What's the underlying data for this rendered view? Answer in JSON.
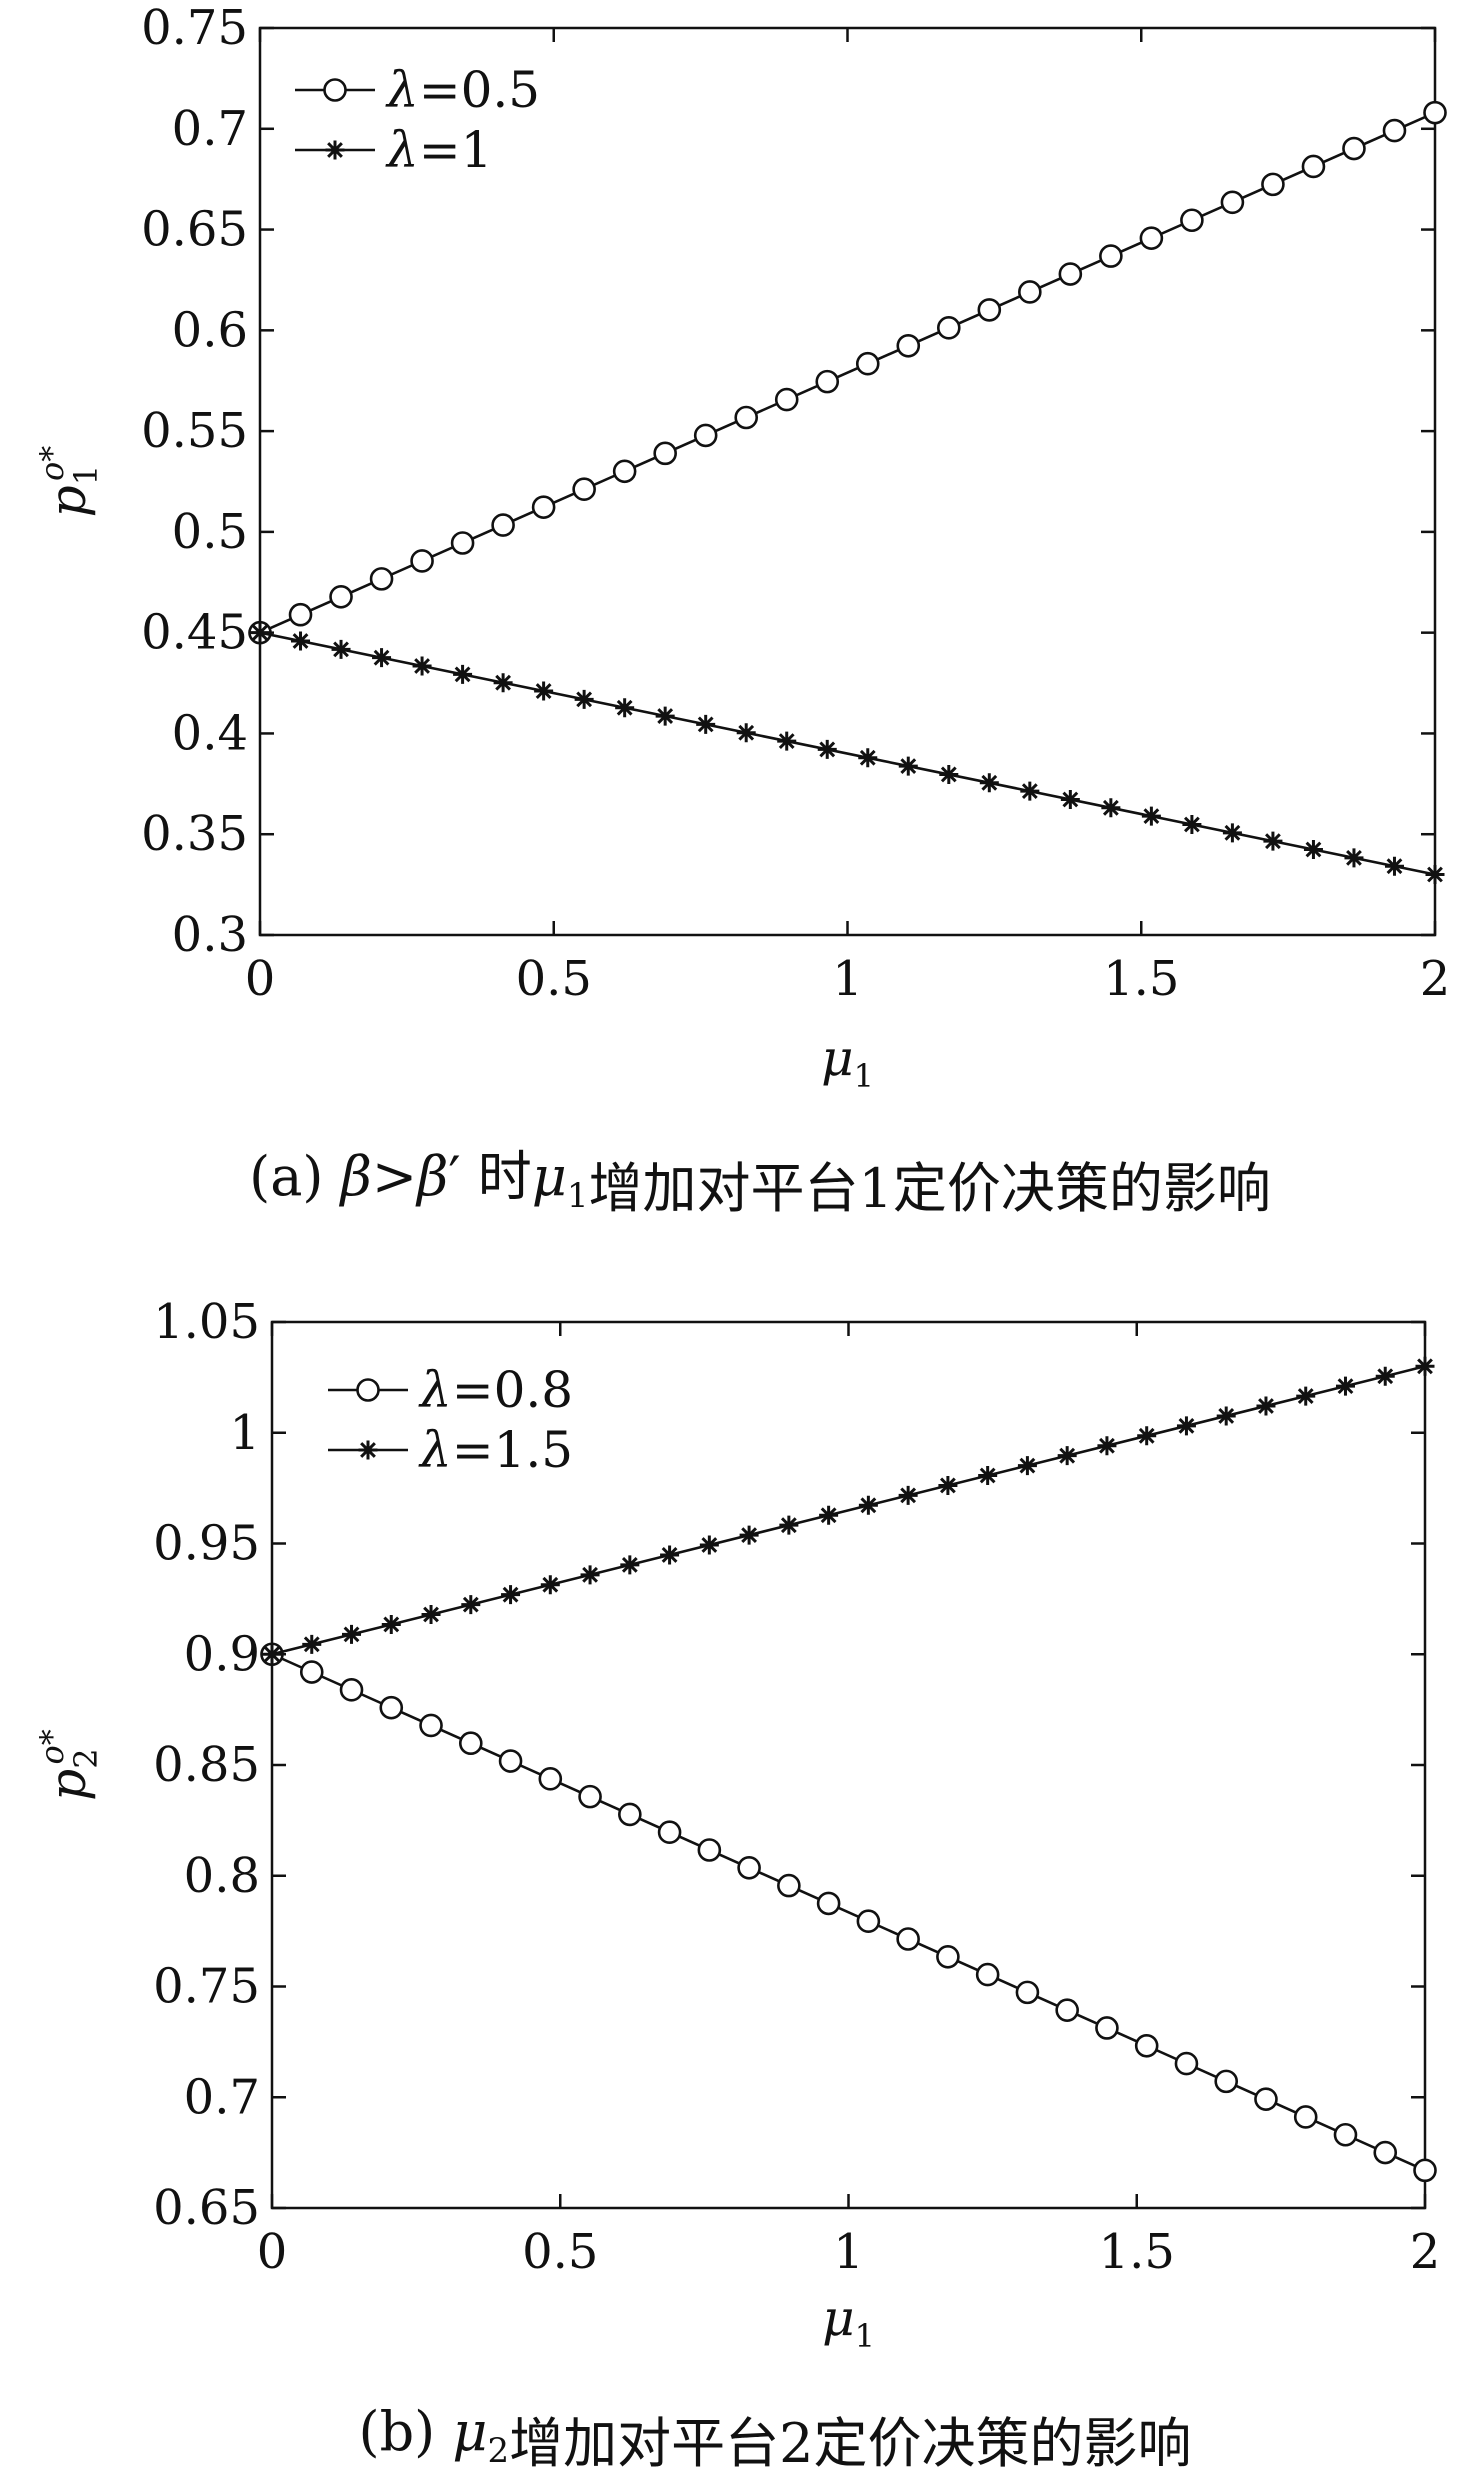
{
  "colors": {
    "ink": "#111111",
    "background": "#ffffff"
  },
  "chart_data": [
    {
      "type": "line",
      "panel": "a",
      "caption": "(a) β>β′  时μ1增加对平台1定价决策的影响",
      "xlabel": "μ1",
      "ylabel": "p1o*",
      "xlim": [
        0,
        2
      ],
      "ylim": [
        0.3,
        0.75
      ],
      "x_ticks": [
        0,
        0.5,
        1,
        1.5,
        2
      ],
      "x_tick_labels": [
        "0",
        "0.5",
        "1",
        "1.5",
        "2"
      ],
      "y_ticks": [
        0.3,
        0.35,
        0.4,
        0.45,
        0.5,
        0.55,
        0.6,
        0.65,
        0.7,
        0.75
      ],
      "y_tick_labels": [
        "0.3",
        "0.35",
        "0.4",
        "0.45",
        "0.5",
        "0.55",
        "0.6",
        "0.65",
        "0.7",
        "0.75"
      ],
      "grid": false,
      "legend_position": "top-left",
      "marker_count": 30,
      "series": [
        {
          "name": "λ=0.5",
          "marker": "circle",
          "x": [
            0,
            2
          ],
          "y": [
            0.45,
            0.708
          ]
        },
        {
          "name": "λ=1",
          "marker": "asterisk",
          "x": [
            0,
            2
          ],
          "y": [
            0.45,
            0.33
          ]
        }
      ]
    },
    {
      "type": "line",
      "panel": "b",
      "caption": "(b) μ2增加对平台2定价决策的影响",
      "xlabel": "μ1",
      "ylabel": "p2o*",
      "xlim": [
        0,
        2
      ],
      "ylim": [
        0.65,
        1.05
      ],
      "x_ticks": [
        0,
        0.5,
        1,
        1.5,
        2
      ],
      "x_tick_labels": [
        "0",
        "0.5",
        "1",
        "1.5",
        "2"
      ],
      "y_ticks": [
        0.65,
        0.7,
        0.75,
        0.8,
        0.85,
        0.9,
        0.95,
        1,
        1.05
      ],
      "y_tick_labels": [
        "0.65",
        "0.7",
        "0.75",
        "0.8",
        "0.85",
        "0.9",
        "0.95",
        "1",
        "1.05"
      ],
      "grid": false,
      "legend_position": "top-left",
      "marker_count": 30,
      "series": [
        {
          "name": "λ=0.8",
          "marker": "circle",
          "x": [
            0,
            2
          ],
          "y": [
            0.9,
            0.667
          ]
        },
        {
          "name": "λ=1.5",
          "marker": "asterisk",
          "x": [
            0,
            2
          ],
          "y": [
            0.9,
            1.03
          ]
        }
      ]
    }
  ]
}
